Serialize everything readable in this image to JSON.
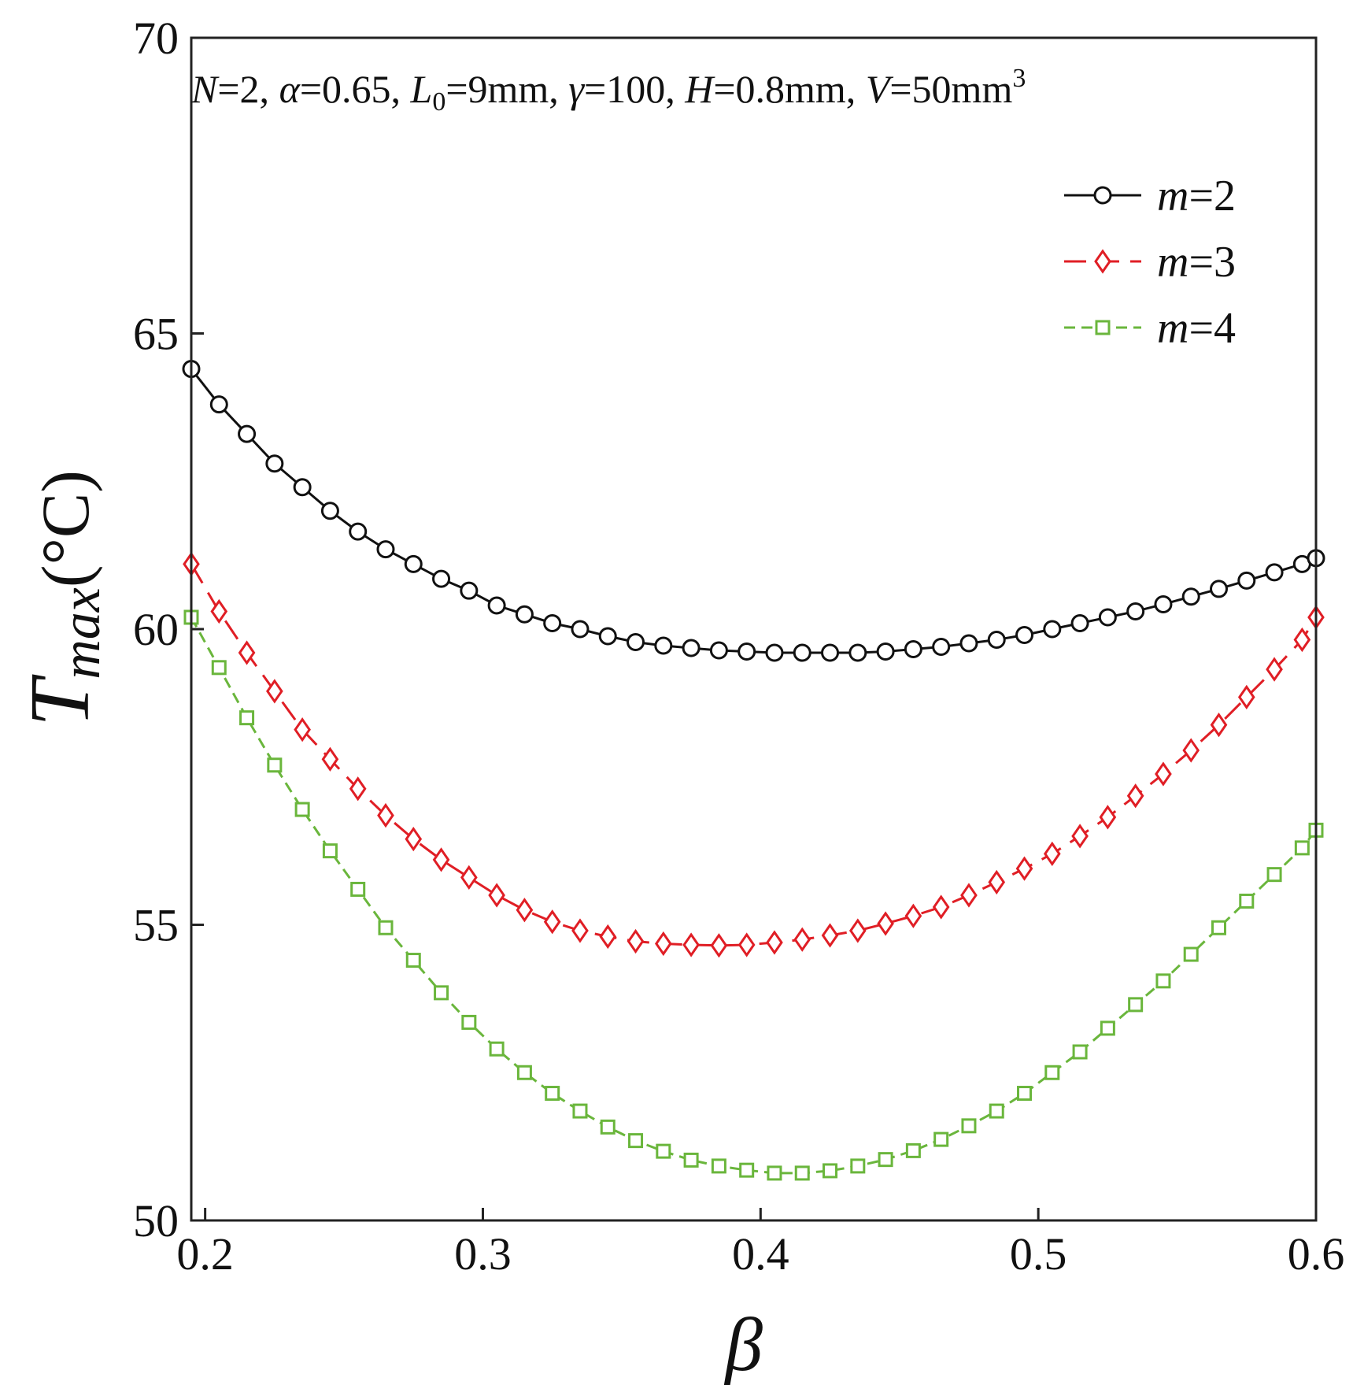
{
  "chart_data": {
    "type": "line",
    "title": "",
    "annotation": "N=2, α=0.65, L0=9mm, γ=100, H=0.8mm, V=50mm3",
    "annotation_parts": {
      "n": "N",
      "n_val": "=2, ",
      "alpha": "α",
      "alpha_val": "=0.65, ",
      "l": "L",
      "l_sub": "0",
      "l_val": "=9mm, ",
      "gamma": "γ",
      "gamma_val": "=100, ",
      "h": "H",
      "h_val": "=0.8mm, ",
      "v": "V",
      "v_val": "=50mm",
      "v_sup": "3"
    },
    "xlabel": "β",
    "ylabel": {
      "main": "T",
      "sub": "max",
      "unit": "(°C)"
    },
    "xlim": [
      0.195,
      0.6
    ],
    "ylim": [
      50,
      70
    ],
    "xticks": [
      0.2,
      0.3,
      0.4,
      0.5,
      0.6
    ],
    "xtick_labels": [
      "0.2",
      "0.3",
      "0.4",
      "0.5",
      "0.6"
    ],
    "yticks": [
      50,
      55,
      60,
      65,
      70
    ],
    "ytick_labels": [
      "50",
      "55",
      "60",
      "65",
      "70"
    ],
    "legend_position": "top-right",
    "x": [
      0.195,
      0.205,
      0.215,
      0.225,
      0.235,
      0.245,
      0.255,
      0.265,
      0.275,
      0.285,
      0.295,
      0.305,
      0.315,
      0.325,
      0.335,
      0.345,
      0.355,
      0.365,
      0.375,
      0.385,
      0.395,
      0.405,
      0.415,
      0.425,
      0.435,
      0.445,
      0.455,
      0.465,
      0.475,
      0.485,
      0.495,
      0.505,
      0.515,
      0.525,
      0.535,
      0.545,
      0.555,
      0.565,
      0.575,
      0.585,
      0.595,
      0.6
    ],
    "series": [
      {
        "name": "m=2",
        "label_var": "m",
        "label_val": "=2",
        "color": "#111111",
        "marker": "circle",
        "dash": "",
        "values": [
          64.4,
          63.8,
          63.3,
          62.8,
          62.4,
          62.0,
          61.65,
          61.35,
          61.1,
          60.85,
          60.65,
          60.4,
          60.25,
          60.1,
          60.0,
          59.88,
          59.78,
          59.72,
          59.68,
          59.64,
          59.62,
          59.6,
          59.6,
          59.6,
          59.6,
          59.62,
          59.66,
          59.7,
          59.76,
          59.82,
          59.9,
          60.0,
          60.1,
          60.2,
          60.3,
          60.42,
          60.55,
          60.68,
          60.82,
          60.96,
          61.1,
          61.2
        ]
      },
      {
        "name": "m=3",
        "label_var": "m",
        "label_val": "=3",
        "color": "#e01e25",
        "marker": "diamond",
        "dash": "28,14",
        "values": [
          61.1,
          60.3,
          59.6,
          58.95,
          58.3,
          57.8,
          57.3,
          56.85,
          56.45,
          56.1,
          55.8,
          55.5,
          55.25,
          55.05,
          54.9,
          54.8,
          54.72,
          54.68,
          54.66,
          54.65,
          54.66,
          54.7,
          54.75,
          54.82,
          54.9,
          55.02,
          55.15,
          55.3,
          55.5,
          55.72,
          55.95,
          56.2,
          56.5,
          56.82,
          57.18,
          57.55,
          57.95,
          58.38,
          58.85,
          59.32,
          59.82,
          60.2
        ]
      },
      {
        "name": "m=4",
        "label_var": "m",
        "label_val": "=4",
        "color": "#6ab63c",
        "marker": "square",
        "dash": "14,8",
        "values": [
          60.2,
          59.35,
          58.5,
          57.7,
          56.95,
          56.25,
          55.6,
          54.95,
          54.4,
          53.85,
          53.35,
          52.9,
          52.5,
          52.15,
          51.85,
          51.58,
          51.35,
          51.17,
          51.02,
          50.92,
          50.85,
          50.8,
          50.8,
          50.84,
          50.92,
          51.03,
          51.18,
          51.37,
          51.6,
          51.85,
          52.15,
          52.5,
          52.85,
          53.25,
          53.65,
          54.05,
          54.5,
          54.95,
          55.4,
          55.85,
          56.3,
          56.6
        ]
      }
    ]
  }
}
